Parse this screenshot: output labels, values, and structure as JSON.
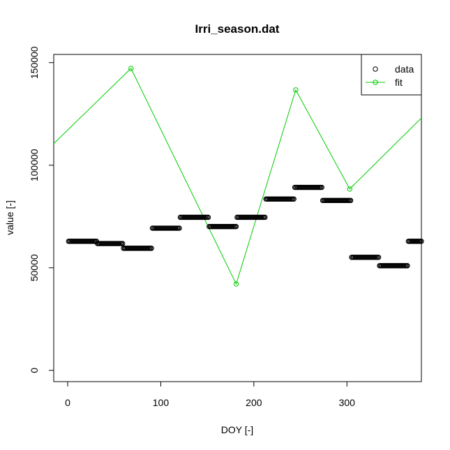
{
  "chart_data": {
    "type": "scatter",
    "title": "Irri_season.dat",
    "xlabel": "DOY [-]",
    "ylabel": "value [-]",
    "xlim": [
      -15,
      380
    ],
    "ylim": [
      -5500,
      154000
    ],
    "xticks": [
      0,
      100,
      200,
      300
    ],
    "yticks": [
      0,
      50000,
      100000,
      150000
    ],
    "grid": false,
    "legend_position": "top-right",
    "legend": [
      {
        "label": "data",
        "color": "#000000",
        "marker": "circle",
        "line": false
      },
      {
        "label": "fit",
        "color": "#00cc00",
        "marker": "circle",
        "line": true
      }
    ],
    "series": [
      {
        "name": "data",
        "kind": "points",
        "color": "#000000",
        "segments": [
          {
            "x_start": 1,
            "x_end": 31,
            "y": 62900
          },
          {
            "x_start": 32,
            "x_end": 59,
            "y": 61800
          },
          {
            "x_start": 60,
            "x_end": 90,
            "y": 59500
          },
          {
            "x_start": 91,
            "x_end": 120,
            "y": 69300
          },
          {
            "x_start": 121,
            "x_end": 151,
            "y": 74600
          },
          {
            "x_start": 152,
            "x_end": 181,
            "y": 70100
          },
          {
            "x_start": 182,
            "x_end": 212,
            "y": 74600
          },
          {
            "x_start": 213,
            "x_end": 243,
            "y": 83500
          },
          {
            "x_start": 244,
            "x_end": 273,
            "y": 89200
          },
          {
            "x_start": 274,
            "x_end": 304,
            "y": 82800
          },
          {
            "x_start": 305,
            "x_end": 334,
            "y": 55100
          },
          {
            "x_start": 335,
            "x_end": 365,
            "y": 51000
          },
          {
            "x_start": 366,
            "x_end": 380,
            "y": 62900
          }
        ]
      },
      {
        "name": "fit",
        "kind": "line",
        "color": "#00cc00",
        "line_points": [
          {
            "x": -15,
            "y": 110500
          },
          {
            "x": 68,
            "y": 147200
          },
          {
            "x": 181,
            "y": 42100
          },
          {
            "x": 245,
            "y": 136700
          },
          {
            "x": 303,
            "y": 88400
          },
          {
            "x": 380,
            "y": 123000
          }
        ],
        "markers": [
          {
            "x": 68,
            "y": 147200
          },
          {
            "x": 181,
            "y": 42100
          },
          {
            "x": 245,
            "y": 136700
          },
          {
            "x": 303,
            "y": 88400
          }
        ]
      }
    ]
  }
}
